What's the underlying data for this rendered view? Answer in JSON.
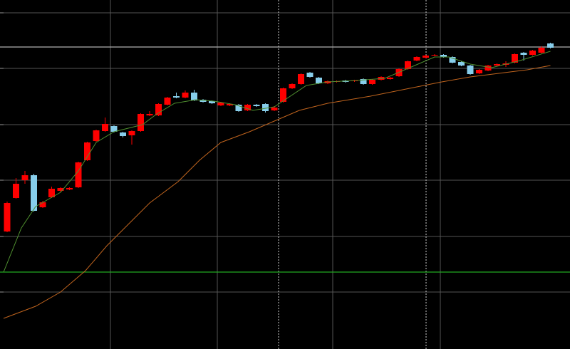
{
  "chart_data": {
    "type": "candlestick",
    "background": "#000000",
    "grid": true,
    "grid_color": "#555555",
    "up_color": "#ff0000",
    "down_color": "#87ceeb",
    "xlim": [
      -0.8,
      63.2
    ],
    "ylim": [
      0,
      490
    ],
    "xticks": [
      11.6,
      23.6,
      36.56,
      48.64
    ],
    "yticks": [
      80,
      158,
      237,
      315,
      394,
      472
    ],
    "x": [
      0,
      1,
      2,
      3,
      4,
      5,
      6,
      7,
      8,
      9,
      10,
      11,
      12,
      13,
      14,
      15,
      16,
      17,
      18,
      19,
      20,
      21,
      22,
      23,
      24,
      25,
      26,
      27,
      28,
      29,
      30,
      31,
      32,
      33,
      34,
      35,
      36,
      37,
      38,
      39,
      40,
      41,
      42,
      43,
      44,
      45,
      46,
      47,
      48,
      49,
      50,
      51,
      52,
      53,
      54,
      55,
      56,
      57,
      58,
      59,
      60,
      61
    ],
    "open": [
      165,
      212,
      237,
      244,
      199,
      213,
      222,
      224,
      227,
      265,
      292,
      306,
      313,
      304,
      300,
      306,
      328,
      328,
      343,
      355,
      353,
      360,
      350,
      348,
      342,
      342,
      343,
      335,
      343,
      344,
      335,
      347,
      366,
      372,
      388,
      381,
      373,
      375,
      377,
      376,
      379,
      372,
      378,
      379,
      383,
      393,
      405,
      409,
      412,
      413,
      410,
      403,
      398,
      387,
      391,
      398,
      399,
      402,
      416,
      413,
      416,
      429
    ],
    "high": [
      207,
      240,
      250,
      246,
      208,
      228,
      227,
      227,
      263,
      291,
      308,
      325,
      314,
      305,
      307,
      331,
      334,
      345,
      354,
      360,
      363,
      364,
      351,
      349,
      347,
      345,
      344,
      344,
      344,
      345,
      341,
      367,
      373,
      387,
      389,
      382,
      377,
      377,
      378,
      378,
      380,
      379,
      383,
      382,
      394,
      405,
      411,
      413,
      414,
      414,
      411,
      404,
      399,
      393,
      399,
      401,
      404,
      415,
      417,
      420,
      425,
      430
    ],
    "low": [
      164,
      211,
      232,
      193,
      198,
      212,
      221,
      223,
      226,
      264,
      291,
      305,
      304,
      297,
      287,
      305,
      327,
      327,
      342,
      352,
      352,
      348,
      346,
      344,
      341,
      341,
      333,
      334,
      340,
      332,
      334,
      346,
      365,
      371,
      381,
      372,
      372,
      374,
      374,
      375,
      371,
      371,
      377,
      378,
      382,
      392,
      404,
      408,
      411,
      409,
      401,
      397,
      385,
      386,
      390,
      397,
      396,
      401,
      405,
      412,
      415,
      422
    ],
    "close": [
      205,
      232,
      244,
      194,
      206,
      225,
      226,
      226,
      262,
      290,
      307,
      316,
      305,
      299,
      306,
      330,
      330,
      344,
      353,
      353,
      360,
      349,
      347,
      345,
      346,
      344,
      334,
      343,
      341,
      334,
      339,
      366,
      372,
      386,
      382,
      373,
      376,
      376,
      375,
      377,
      372,
      378,
      382,
      381,
      393,
      404,
      410,
      412,
      413,
      410,
      402,
      398,
      386,
      392,
      398,
      400,
      401,
      414,
      413,
      419,
      423,
      423
    ],
    "lines": [
      {
        "color": "#4f8f2f",
        "x": [
          -0.4,
          1.6,
          3.2,
          6,
          8,
          10,
          12,
          15.2,
          16.8,
          18.8,
          21.2,
          23.2,
          25.6,
          27.6,
          30,
          31.2,
          33.6,
          36,
          39.2,
          42.4,
          45.2,
          48,
          49.6,
          52,
          54.4,
          57.6,
          61
        ],
        "values": [
          108,
          170,
          200,
          220,
          250,
          290,
          305,
          315,
          330,
          345,
          350,
          348,
          343,
          335,
          340,
          350,
          370,
          375,
          377,
          380,
          395,
          410,
          410,
          400,
          395,
          405,
          418
        ]
      },
      {
        "color": "#c0641e",
        "x": [
          -0.4,
          3.2,
          6,
          8.8,
          11.2,
          13.6,
          16,
          19.2,
          21.6,
          24,
          27.2,
          30,
          32.8,
          36,
          40.8,
          44.8,
          48.8,
          52,
          55.2,
          58.4,
          61
        ],
        "values": [
          43,
          60,
          80,
          110,
          145,
          175,
          205,
          235,
          265,
          290,
          305,
          320,
          335,
          345,
          355,
          365,
          375,
          382,
          387,
          392,
          398
        ]
      }
    ],
    "hlines": [
      {
        "value": 424,
        "color": "#b0b0b0"
      },
      {
        "value": 108,
        "color": "#22aa22"
      }
    ],
    "vlines": [
      30.48,
      47.04
    ]
  }
}
